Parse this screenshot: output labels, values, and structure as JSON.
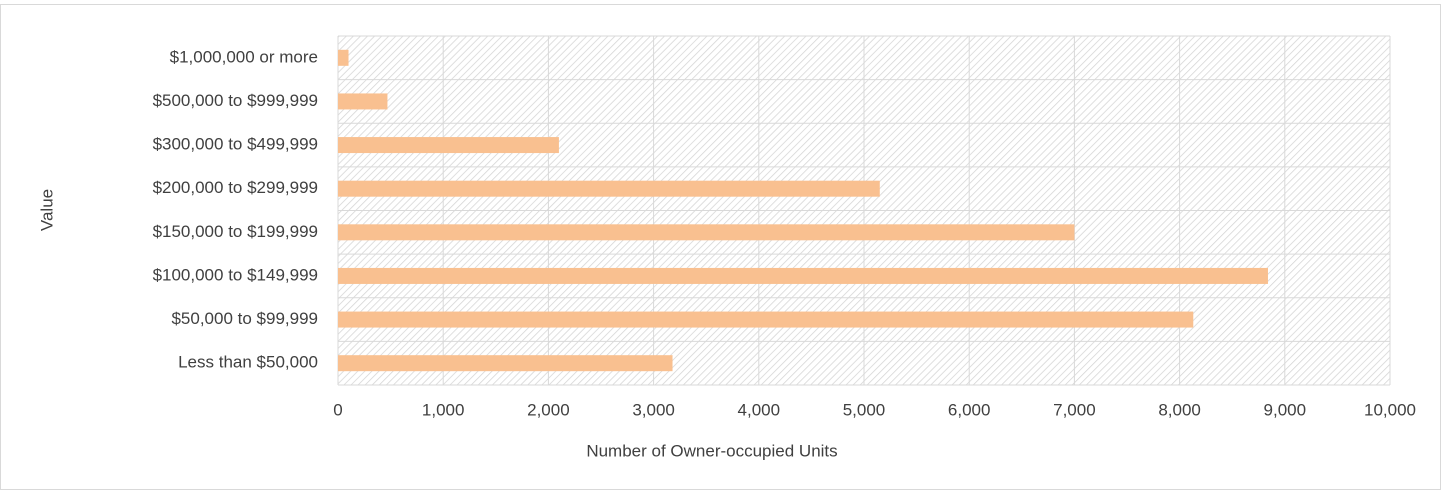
{
  "chart_data": {
    "type": "hbar",
    "categories": [
      "$1,000,000 or more",
      "$500,000 to $999,999",
      "$300,000 to $499,999",
      "$200,000 to $299,999",
      "$150,000 to $199,999",
      "$100,000 to $149,999",
      "$50,000 to $99,999",
      "Less than $50,000"
    ],
    "values": [
      100,
      470,
      2100,
      5150,
      7000,
      8840,
      8130,
      3180
    ],
    "color": "#f9c090",
    "xlabel": "Number of Owner-occupied Units",
    "ylabel": "Value",
    "xlim": [
      0,
      10000
    ],
    "xticks": [
      0,
      {
        "value": 1000,
        "label": "1,000"
      },
      {
        "value": 2000,
        "label": "2,000"
      },
      {
        "value": 3000,
        "label": "3,000"
      },
      {
        "value": 4000,
        "label": "4,000"
      },
      {
        "value": 5000,
        "label": "5,000"
      },
      {
        "value": 6000,
        "label": "6,000"
      },
      {
        "value": 7000,
        "label": "7,000"
      },
      {
        "value": 8000,
        "label": "8,000"
      },
      {
        "value": 9000,
        "label": "9,000"
      },
      {
        "value": 10000,
        "label": "10,000"
      }
    ],
    "grid": true
  }
}
